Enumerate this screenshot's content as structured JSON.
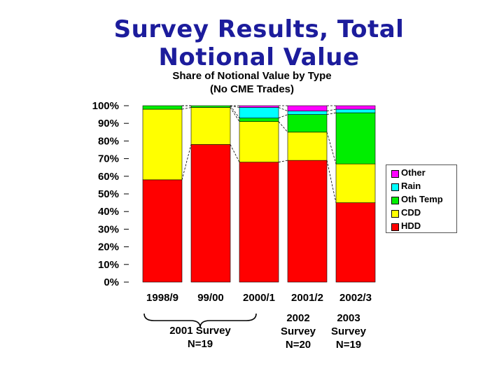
{
  "slide": {
    "title_line1": "Survey Results, Total",
    "title_line2": "Notional Value"
  },
  "chart_data": {
    "type": "bar",
    "stacked": true,
    "percent": true,
    "title": "Share of Notional Value by Type",
    "subtitle": "(No CME Trades)",
    "categories": [
      "1998/9",
      "99/00",
      "2000/1",
      "2001/2",
      "2002/3"
    ],
    "ylim": [
      0,
      100
    ],
    "yticks": [
      "0%",
      "10%",
      "20%",
      "30%",
      "40%",
      "50%",
      "60%",
      "70%",
      "80%",
      "90%",
      "100%"
    ],
    "series": [
      {
        "name": "HDD",
        "color": "#ff0000",
        "values": [
          58,
          78,
          68,
          69,
          45
        ]
      },
      {
        "name": "CDD",
        "color": "#ffff00",
        "values": [
          40,
          21,
          23,
          16,
          22
        ]
      },
      {
        "name": "Oth Temp",
        "color": "#00ee00",
        "values": [
          2,
          1,
          2,
          10,
          29
        ]
      },
      {
        "name": "Rain",
        "color": "#00ffff",
        "values": [
          0,
          0,
          6,
          2,
          2
        ]
      },
      {
        "name": "Other",
        "color": "#ff00ff",
        "values": [
          0,
          0,
          1,
          3,
          2
        ]
      }
    ],
    "connector_lines": true,
    "grid": false,
    "legend_position": "right"
  },
  "legend_order": [
    "Other",
    "Rain",
    "Oth Temp",
    "CDD",
    "HDD"
  ],
  "survey_groups": [
    {
      "line1": "2001 Survey",
      "line2": "N=19"
    },
    {
      "line1": "2002",
      "line2": "Survey",
      "line3": "N=20"
    },
    {
      "line1": "2003",
      "line2": "Survey",
      "line3": "N=19"
    }
  ]
}
